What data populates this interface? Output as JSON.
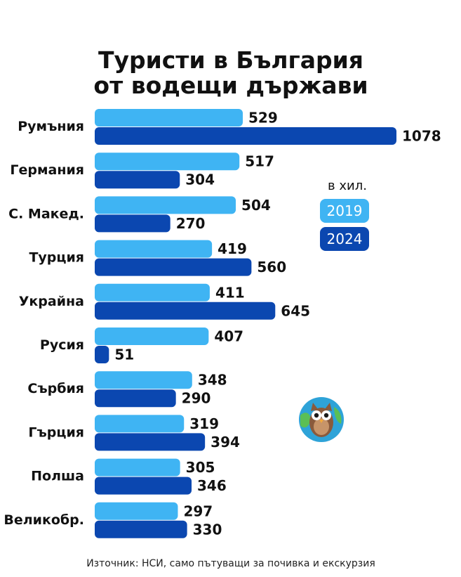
{
  "colors": {
    "c2019": "#3fb4f3",
    "c2024": "#0b47b0",
    "owl_bg": "#2ea3d8",
    "owl_land": "#5bbf55",
    "owl_body": "#8a5a3c",
    "owl_belly": "#c79469"
  },
  "icon": "owl-globe-icon",
  "chart_data": {
    "type": "bar",
    "orientation": "horizontal",
    "title": [
      "Туристи в България",
      "от водещи държави"
    ],
    "unit_label": "в хил.",
    "categories": [
      "Румъния",
      "Германия",
      "С. Макед.",
      "Турция",
      "Украйна",
      "Русия",
      "Сърбия",
      "Гърция",
      "Полша",
      "Великобр."
    ],
    "series": [
      {
        "name": "2019",
        "values": [
          529,
          517,
          504,
          419,
          411,
          407,
          348,
          319,
          305,
          297
        ]
      },
      {
        "name": "2024",
        "values": [
          1078,
          304,
          270,
          560,
          645,
          51,
          290,
          394,
          346,
          330
        ]
      }
    ],
    "data_labels": true,
    "grid": false,
    "legend_position": "right",
    "source": "Източник: НСИ, само пътуващи за почивка и екскурзия"
  }
}
